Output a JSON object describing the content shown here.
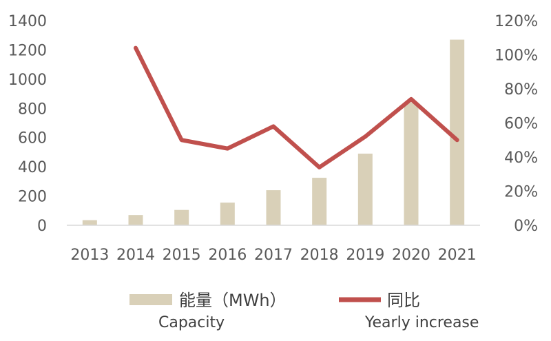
{
  "chart_data": {
    "type": "bar",
    "categories": [
      "2013",
      "2014",
      "2015",
      "2016",
      "2017",
      "2018",
      "2019",
      "2020",
      "2021"
    ],
    "series": [
      {
        "name": "能量（MWh）",
        "subtitle": "Capacity",
        "type": "bar",
        "axis": "left",
        "color": "#d9d0b8",
        "values": [
          35,
          70,
          105,
          155,
          240,
          325,
          490,
          840,
          1270
        ]
      },
      {
        "name": "同比",
        "subtitle": "Yearly increase",
        "type": "line",
        "axis": "right",
        "color": "#c0504d",
        "values": [
          null,
          104,
          50,
          45,
          58,
          34,
          52,
          74,
          50
        ]
      }
    ],
    "y_left": {
      "ylim": [
        0,
        1400
      ],
      "ticks": [
        "0",
        "200",
        "400",
        "600",
        "800",
        "1000",
        "1200",
        "1400"
      ]
    },
    "y_right": {
      "ylim": [
        0,
        120
      ],
      "ticks": [
        "0%",
        "20%",
        "40%",
        "60%",
        "80%",
        "100%",
        "120%"
      ]
    },
    "grid": false,
    "legend_position": "bottom"
  }
}
